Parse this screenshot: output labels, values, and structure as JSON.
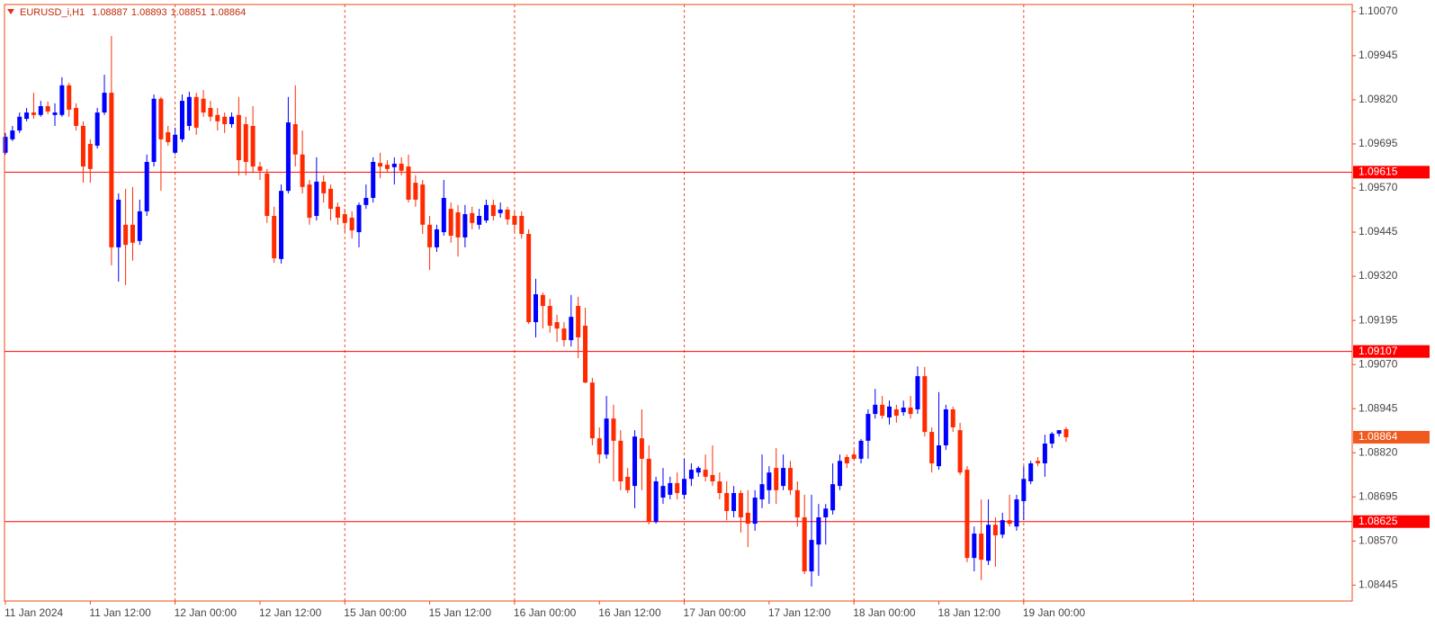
{
  "chart_data": {
    "type": "candlestick",
    "symbol": "EURUSD_i,H1",
    "bull_color": "#0000ff",
    "bear_color": "#ff2a00",
    "level_color": "#ff0000",
    "current_color": "#f05a1e",
    "ylim": [
      1.084,
      1.1009
    ],
    "yticks": [
      {
        "value": 1.1007,
        "label": "1.10070"
      },
      1.09945,
      {
        "value": 1.0982,
        "label": "1.09820"
      },
      1.09695,
      {
        "value": 1.0957,
        "label": "1.09570"
      },
      1.09445,
      {
        "value": 1.0932,
        "label": "1.09320"
      },
      1.09195,
      {
        "value": 1.0907,
        "label": "1.09070"
      },
      1.08945,
      {
        "value": 1.0882,
        "label": "1.08820"
      },
      1.08695,
      {
        "value": 1.0857,
        "label": "1.08570"
      },
      1.08445
    ],
    "levels": [
      1.09615,
      1.09107,
      1.08625
    ],
    "categories": [
      "11 Jan 2024",
      null,
      null,
      null,
      null,
      null,
      null,
      null,
      null,
      null,
      null,
      null,
      "11 Jan 12:00",
      null,
      null,
      null,
      null,
      null,
      null,
      null,
      null,
      null,
      null,
      null,
      "12 Jan 00:00",
      null,
      null,
      null,
      null,
      null,
      null,
      null,
      null,
      null,
      null,
      null,
      "12 Jan 12:00",
      null,
      null,
      null,
      null,
      null,
      null,
      null,
      null,
      null,
      null,
      null,
      "15 Jan 00:00",
      null,
      null,
      null,
      null,
      null,
      null,
      null,
      null,
      null,
      null,
      null,
      "15 Jan 12:00",
      null,
      null,
      null,
      null,
      null,
      null,
      null,
      null,
      null,
      null,
      null,
      "16 Jan 00:00",
      null,
      null,
      null,
      null,
      null,
      null,
      null,
      null,
      null,
      null,
      null,
      "16 Jan 12:00",
      null,
      null,
      null,
      null,
      null,
      null,
      null,
      null,
      null,
      null,
      null,
      "17 Jan 00:00",
      null,
      null,
      null,
      null,
      null,
      null,
      null,
      null,
      null,
      null,
      null,
      "17 Jan 12:00",
      null,
      null,
      null,
      null,
      null,
      null,
      null,
      null,
      null,
      null,
      null,
      "18 Jan 00:00",
      null,
      null,
      null,
      null,
      null,
      null,
      null,
      null,
      null,
      null,
      null,
      "18 Jan 12:00",
      null,
      null,
      null,
      null,
      null,
      null,
      null,
      null,
      null,
      null,
      null,
      "19 Jan 00:00",
      null,
      null,
      null,
      null,
      null,
      null
    ],
    "candles": [
      [
        1.0967,
        1.09726,
        1.09665,
        1.09715
      ],
      [
        1.09708,
        1.09746,
        1.09703,
        1.09733
      ],
      [
        1.09733,
        1.09784,
        1.09726,
        1.09772
      ],
      [
        1.09766,
        1.09797,
        1.09759,
        1.09784
      ],
      [
        1.09784,
        1.0984,
        1.09766,
        1.09777
      ],
      [
        1.09777,
        1.09817,
        1.09772,
        1.09802
      ],
      [
        1.09802,
        1.09815,
        1.09779,
        1.09787
      ],
      [
        1.09777,
        1.0981,
        1.09746,
        1.09784
      ],
      [
        1.09777,
        1.09884,
        1.09772,
        1.09861
      ],
      [
        1.09861,
        1.09868,
        1.09772,
        1.09792
      ],
      [
        1.09797,
        1.0981,
        1.09733,
        1.09746
      ],
      [
        1.09746,
        1.09759,
        1.09585,
        1.09631
      ],
      [
        1.09695,
        1.09708,
        1.09585,
        1.09624
      ],
      [
        1.0969,
        1.09797,
        1.09682,
        1.09784
      ],
      [
        1.09784,
        1.09891,
        1.09777,
        1.0984
      ],
      [
        1.0984,
        1.10001,
        1.09351,
        1.09402
      ],
      [
        1.09402,
        1.09555,
        1.09305,
        1.09537
      ],
      [
        1.09466,
        1.09568,
        1.09295,
        1.09409
      ],
      [
        1.09466,
        1.09573,
        1.09364,
        1.09415
      ],
      [
        1.0942,
        1.09537,
        1.09409,
        1.09504
      ],
      [
        1.09504,
        1.09665,
        1.09491,
        1.09644
      ],
      [
        1.09644,
        1.09835,
        1.09631,
        1.09823
      ],
      [
        1.09823,
        1.09828,
        1.09562,
        1.09708
      ],
      [
        1.09728,
        1.09746,
        1.0969,
        1.097
      ],
      [
        1.0967,
        1.09741,
        1.09665,
        1.09721
      ],
      [
        1.09708,
        1.09835,
        1.097,
        1.09817
      ],
      [
        1.09746,
        1.09843,
        1.09733,
        1.09828
      ],
      [
        1.09828,
        1.0984,
        1.09721,
        1.09741
      ],
      [
        1.09823,
        1.09848,
        1.09772,
        1.09784
      ],
      [
        1.09797,
        1.09817,
        1.09759,
        1.09772
      ],
      [
        1.09777,
        1.09797,
        1.09733,
        1.09759
      ],
      [
        1.09772,
        1.09784,
        1.09726,
        1.09751
      ],
      [
        1.09751,
        1.09784,
        1.09741,
        1.09772
      ],
      [
        1.09777,
        1.09828,
        1.09606,
        1.09649
      ],
      [
        1.09751,
        1.09772,
        1.09606,
        1.09644
      ],
      [
        1.09746,
        1.09802,
        1.09613,
        1.09631
      ],
      [
        1.09631,
        1.09644,
        1.09593,
        1.09619
      ],
      [
        1.09611,
        1.09624,
        1.09471,
        1.09491
      ],
      [
        1.09491,
        1.09517,
        1.09358,
        1.09371
      ],
      [
        1.09369,
        1.0958,
        1.09356,
        1.09562
      ],
      [
        1.09562,
        1.09828,
        1.09555,
        1.09756
      ],
      [
        1.09751,
        1.09861,
        1.09631,
        1.09665
      ],
      [
        1.09665,
        1.09733,
        1.09555,
        1.09573
      ],
      [
        1.0958,
        1.09593,
        1.09466,
        1.09486
      ],
      [
        1.09491,
        1.09657,
        1.09478,
        1.09588
      ],
      [
        1.09588,
        1.09606,
        1.09529,
        1.09555
      ],
      [
        1.09568,
        1.0958,
        1.09478,
        1.09511
      ],
      [
        1.09517,
        1.09529,
        1.09466,
        1.09486
      ],
      [
        1.09496,
        1.09511,
        1.09445,
        1.09471
      ],
      [
        1.09486,
        1.09504,
        1.09427,
        1.0945
      ],
      [
        1.09445,
        1.09529,
        1.09402,
        1.09522
      ],
      [
        1.09522,
        1.0958,
        1.09511,
        1.09542
      ],
      [
        1.09542,
        1.09657,
        1.09529,
        1.09644
      ],
      [
        1.09641,
        1.0967,
        1.09598,
        1.09631
      ],
      [
        1.09636,
        1.09649,
        1.09613,
        1.09624
      ],
      [
        1.09629,
        1.09657,
        1.0958,
        1.09639
      ],
      [
        1.09639,
        1.09657,
        1.09606,
        1.09619
      ],
      [
        1.09631,
        1.09665,
        1.09529,
        1.09537
      ],
      [
        1.09585,
        1.09606,
        1.09517,
        1.09537
      ],
      [
        1.0958,
        1.09593,
        1.0944,
        1.09466
      ],
      [
        1.09466,
        1.09491,
        1.09338,
        1.09402
      ],
      [
        1.09402,
        1.09466,
        1.09389,
        1.09453
      ],
      [
        1.09445,
        1.09593,
        1.09435,
        1.09542
      ],
      [
        1.09511,
        1.09529,
        1.09415,
        1.09435
      ],
      [
        1.09501,
        1.09522,
        1.09376,
        1.0943
      ],
      [
        1.0943,
        1.09522,
        1.09402,
        1.09496
      ],
      [
        1.09499,
        1.09517,
        1.09453,
        1.09471
      ],
      [
        1.09466,
        1.09511,
        1.09453,
        1.09491
      ],
      [
        1.09478,
        1.09537,
        1.09471,
        1.09522
      ],
      [
        1.09522,
        1.09537,
        1.09478,
        1.09491
      ],
      [
        1.09499,
        1.09529,
        1.09486,
        1.09509
      ],
      [
        1.09509,
        1.09517,
        1.09466,
        1.09481
      ],
      [
        1.09491,
        1.09504,
        1.09445,
        1.09466
      ],
      [
        1.09491,
        1.09504,
        1.09427,
        1.0944
      ],
      [
        1.0944,
        1.09453,
        1.09185,
        1.0919
      ],
      [
        1.0919,
        1.09313,
        1.09147,
        1.09269
      ],
      [
        1.09267,
        1.09274,
        1.09172,
        1.09236
      ],
      [
        1.09236,
        1.09256,
        1.0916,
        1.0918
      ],
      [
        1.0919,
        1.09211,
        1.09134,
        1.09172
      ],
      [
        1.09172,
        1.0919,
        1.09121,
        1.09139
      ],
      [
        1.09139,
        1.09267,
        1.09121,
        1.09205
      ],
      [
        1.09236,
        1.09262,
        1.09088,
        1.09147
      ],
      [
        1.0918,
        1.09231,
        1.09017,
        1.09019
      ],
      [
        1.09019,
        1.09032,
        1.08841,
        1.08861
      ],
      [
        1.08861,
        1.08892,
        1.0879,
        1.08815
      ],
      [
        1.08815,
        1.08981,
        1.08803,
        1.08917
      ],
      [
        1.08917,
        1.08956,
        1.08739,
        1.08854
      ],
      [
        1.08854,
        1.08884,
        1.08714,
        1.08739
      ],
      [
        1.08752,
        1.08777,
        1.08706,
        1.08714
      ],
      [
        1.08726,
        1.08884,
        1.08663,
        1.08866
      ],
      [
        1.08861,
        1.08943,
        1.08714,
        1.08803
      ],
      [
        1.08803,
        1.08841,
        1.08617,
        1.08624
      ],
      [
        1.08624,
        1.08752,
        1.08619,
        1.08739
      ],
      [
        1.08693,
        1.08777,
        1.08675,
        1.08726
      ],
      [
        1.08701,
        1.08752,
        1.08688,
        1.08734
      ],
      [
        1.08734,
        1.08764,
        1.08688,
        1.08706
      ],
      [
        1.08701,
        1.08803,
        1.08688,
        1.08746
      ],
      [
        1.08746,
        1.0879,
        1.08726,
        1.08772
      ],
      [
        1.08764,
        1.08782,
        1.08752,
        1.08777
      ],
      [
        1.08772,
        1.08815,
        1.08739,
        1.08752
      ],
      [
        1.08757,
        1.08841,
        1.08726,
        1.08739
      ],
      [
        1.08739,
        1.08764,
        1.08688,
        1.08706
      ],
      [
        1.08706,
        1.08739,
        1.08629,
        1.08655
      ],
      [
        1.08655,
        1.08726,
        1.08637,
        1.08706
      ],
      [
        1.08706,
        1.08714,
        1.08594,
        1.08637
      ],
      [
        1.0865,
        1.08714,
        1.08553,
        1.08619
      ],
      [
        1.08619,
        1.08714,
        1.08599,
        1.08693
      ],
      [
        1.08688,
        1.08815,
        1.08663,
        1.08731
      ],
      [
        1.08714,
        1.08782,
        1.08675,
        1.08764
      ],
      [
        1.08777,
        1.08833,
        1.08675,
        1.08714
      ],
      [
        1.08726,
        1.08815,
        1.08714,
        1.08777
      ],
      [
        1.08777,
        1.08797,
        1.08701,
        1.08714
      ],
      [
        1.08714,
        1.08739,
        1.08611,
        1.08637
      ],
      [
        1.08637,
        1.08701,
        1.08476,
        1.08484
      ],
      [
        1.08484,
        1.08701,
        1.08441,
        1.08573
      ],
      [
        1.0856,
        1.08675,
        1.08471,
        1.08637
      ],
      [
        1.08637,
        1.08675,
        1.0856,
        1.08662
      ],
      [
        1.08657,
        1.0879,
        1.08645,
        1.08731
      ],
      [
        1.08726,
        1.08815,
        1.08714,
        1.08797
      ],
      [
        1.08808,
        1.08815,
        1.08777,
        1.0879
      ],
      [
        1.08815,
        1.08828,
        1.08797,
        1.08803
      ],
      [
        1.08803,
        1.08859,
        1.0879,
        1.08854
      ],
      [
        1.08854,
        1.08943,
        1.08803,
        1.0893
      ],
      [
        1.0893,
        1.09001,
        1.08917,
        1.08956
      ],
      [
        1.08956,
        1.08981,
        1.08917,
        1.08925
      ],
      [
        1.0892,
        1.08968,
        1.089,
        1.08951
      ],
      [
        1.08943,
        1.08956,
        1.08905,
        1.08925
      ],
      [
        1.08935,
        1.08968,
        1.08925,
        1.08948
      ],
      [
        1.08948,
        1.08981,
        1.08917,
        1.0893
      ],
      [
        1.08943,
        1.09065,
        1.0893,
        1.09037
      ],
      [
        1.09037,
        1.09063,
        1.08866,
        1.08879
      ],
      [
        1.08879,
        1.08892,
        1.08764,
        1.0879
      ],
      [
        1.08782,
        1.08992,
        1.08772,
        1.08841
      ],
      [
        1.08841,
        1.08956,
        1.08828,
        1.08943
      ],
      [
        1.08943,
        1.08951,
        1.08879,
        1.08892
      ],
      [
        1.08884,
        1.08905,
        1.08757,
        1.08764
      ],
      [
        1.08772,
        1.08782,
        1.0851,
        1.08522
      ],
      [
        1.08522,
        1.08611,
        1.08484,
        1.08591
      ],
      [
        1.08591,
        1.08688,
        1.08459,
        1.08517
      ],
      [
        1.08514,
        1.08688,
        1.08502,
        1.08616
      ],
      [
        1.08616,
        1.08637,
        1.08497,
        1.08586
      ],
      [
        1.08588,
        1.0865,
        1.08578,
        1.08629
      ],
      [
        1.08629,
        1.08701,
        1.08611,
        1.08619
      ],
      [
        1.08611,
        1.08701,
        1.08599,
        1.08688
      ],
      [
        1.08683,
        1.08782,
        1.08629,
        1.08746
      ],
      [
        1.08739,
        1.08797,
        1.08731,
        1.0879
      ],
      [
        1.08797,
        1.08808,
        1.08782,
        1.0879
      ],
      [
        1.0879,
        1.08871,
        1.08752,
        1.08846
      ],
      [
        1.08846,
        1.08879,
        1.08833,
        1.08874
      ],
      [
        1.08874,
        1.08884,
        1.08866,
        1.08884
      ],
      [
        1.08887,
        1.08893,
        1.08851,
        1.08864
      ]
    ]
  }
}
